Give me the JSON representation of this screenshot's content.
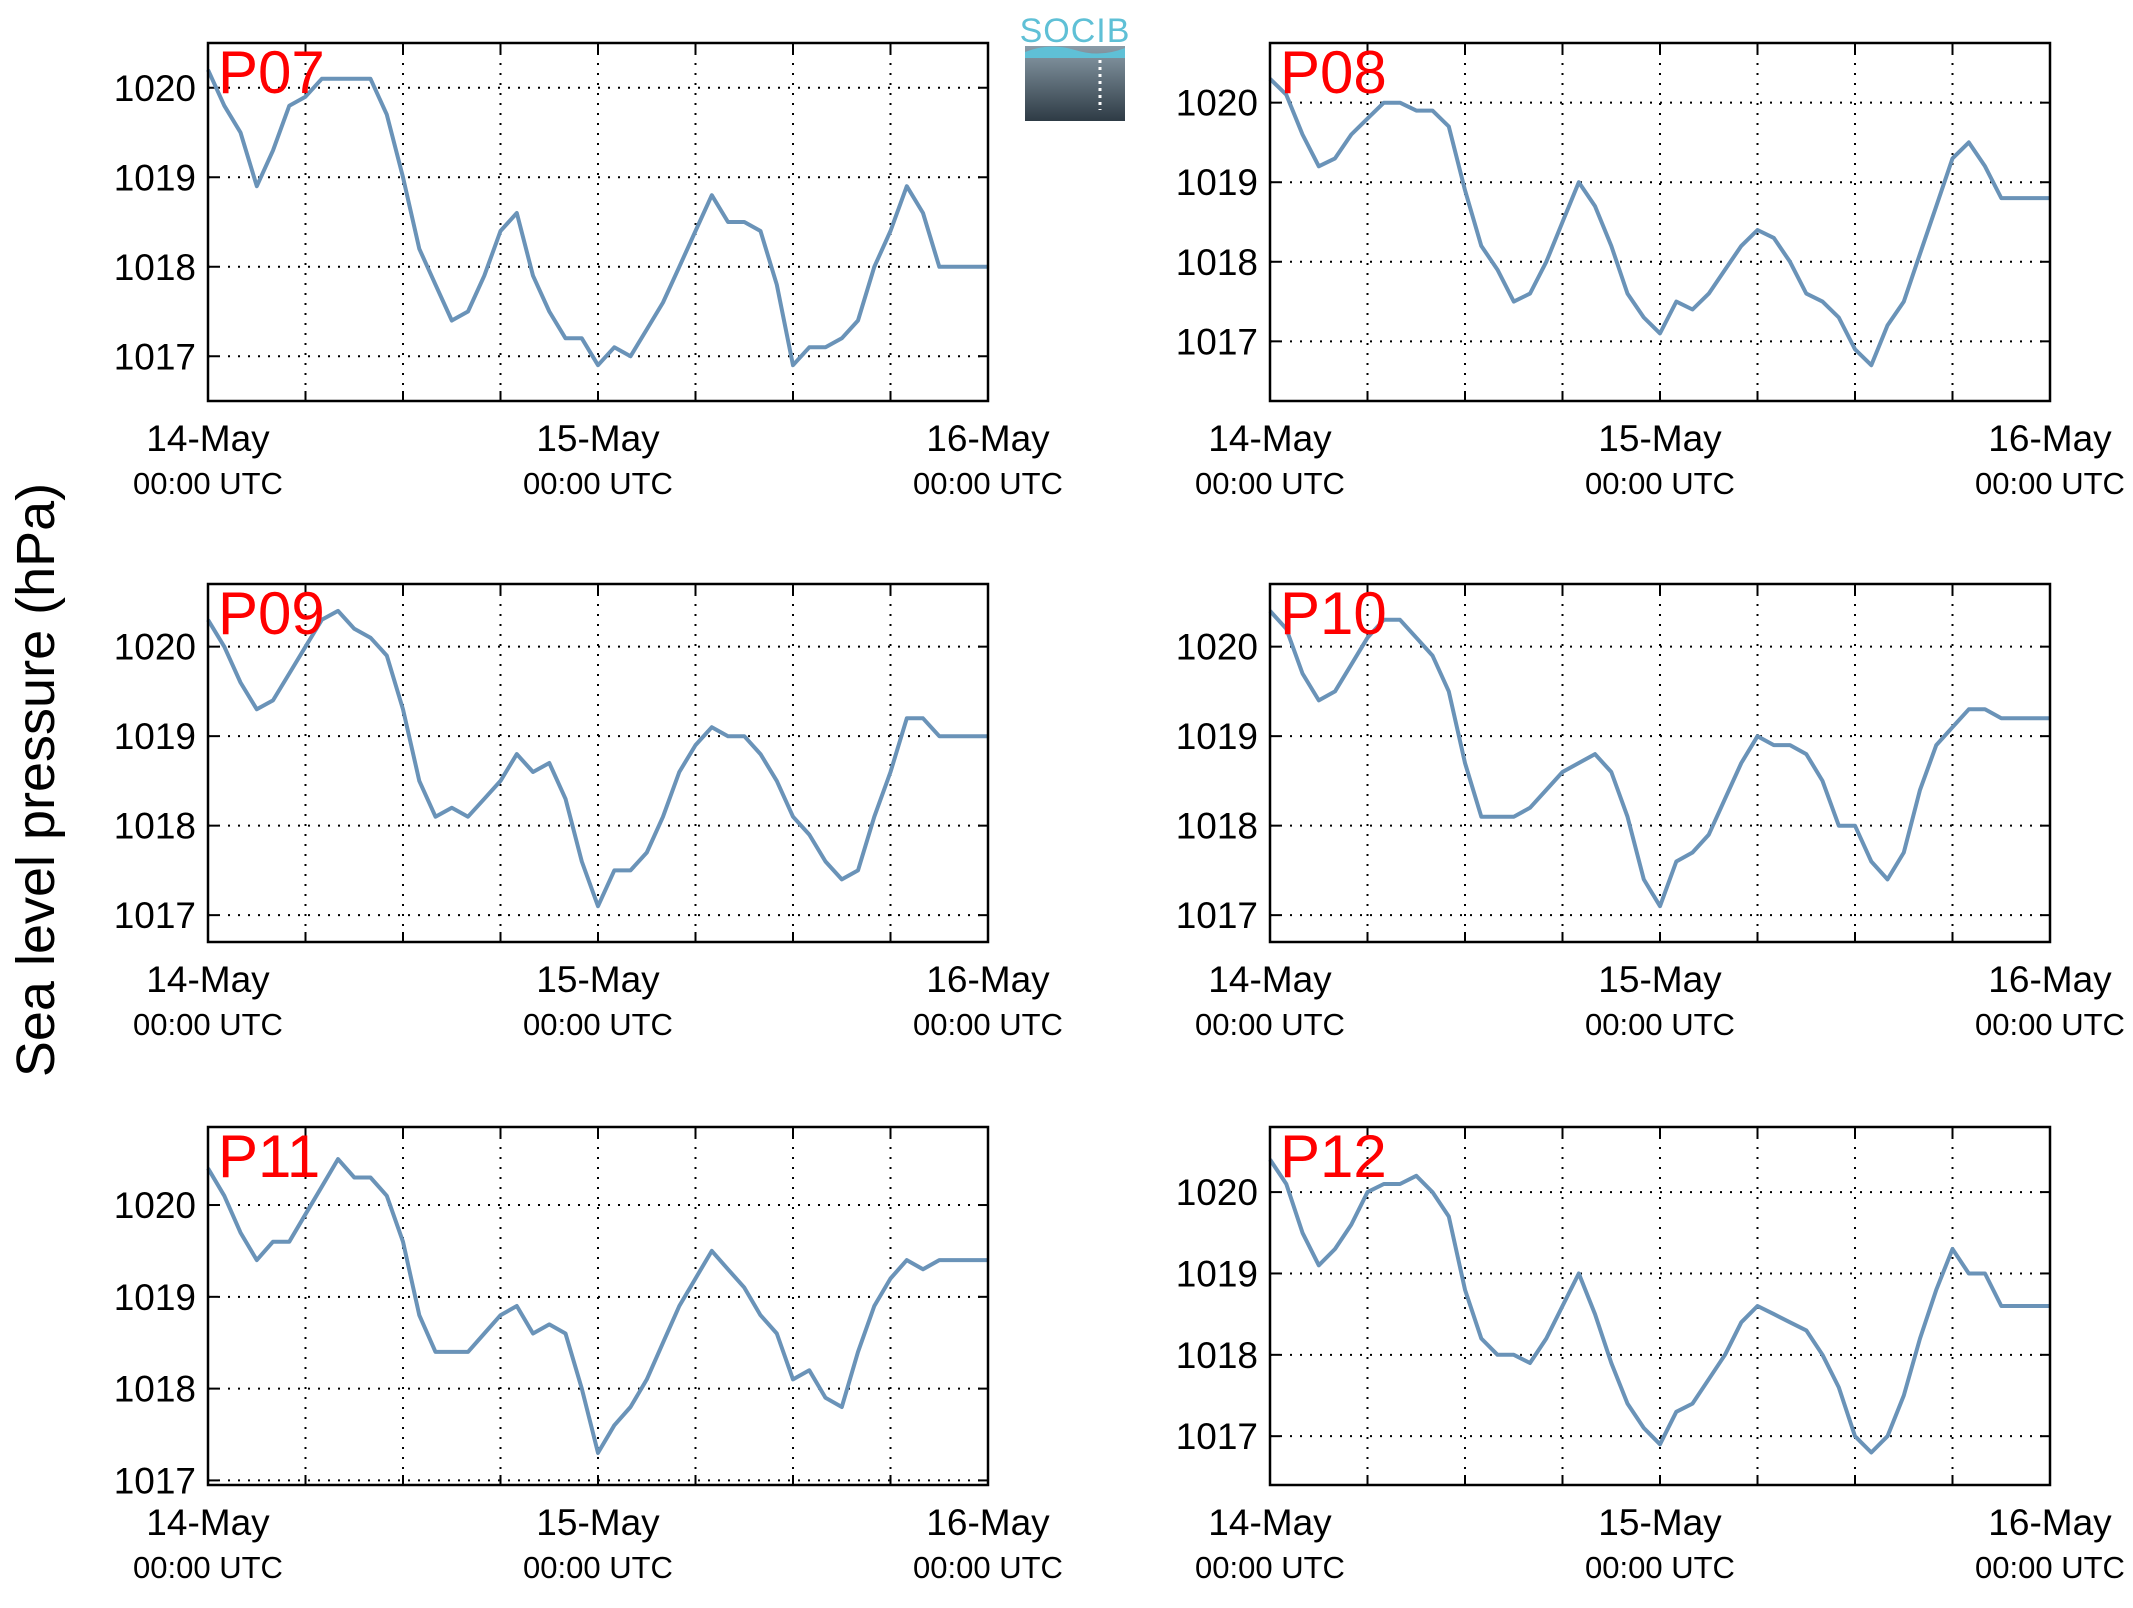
{
  "figure": {
    "ylabel": "Sea level pressure (hPa)",
    "logo_text": "SOCIB",
    "line_color": "#6a93b8",
    "label_color": "#ff0000"
  },
  "chart_data": [
    {
      "type": "line",
      "label": "P07",
      "x_ticks": [
        {
          "main": "14-May",
          "sub": "00:00 UTC"
        },
        {
          "main": "15-May",
          "sub": "00:00 UTC"
        },
        {
          "main": "16-May",
          "sub": "00:00 UTC"
        }
      ],
      "yticks": [
        1017,
        1018,
        1019,
        1020
      ],
      "ylim": [
        1016.5,
        1020.5
      ],
      "xlim": [
        0,
        48
      ],
      "grid": true,
      "x": [
        0,
        1,
        2,
        3,
        4,
        5,
        6,
        7,
        8,
        9,
        10,
        11,
        12,
        13,
        14,
        15,
        16,
        17,
        18,
        19,
        20,
        21,
        22,
        23,
        24,
        25,
        26,
        27,
        28,
        29,
        30,
        31,
        32,
        33,
        34,
        35,
        36,
        37,
        38,
        39,
        40,
        41,
        42,
        43,
        44,
        45,
        46,
        47,
        48
      ],
      "y": [
        1020.2,
        1019.8,
        1019.5,
        1018.9,
        1019.3,
        1019.8,
        1019.9,
        1020.1,
        1020.1,
        1020.1,
        1020.1,
        1019.7,
        1019.0,
        1018.2,
        1017.8,
        1017.4,
        1017.5,
        1017.9,
        1018.4,
        1018.6,
        1017.9,
        1017.5,
        1017.2,
        1017.2,
        1016.9,
        1017.1,
        1017.0,
        1017.3,
        1017.6,
        1018.0,
        1018.4,
        1018.8,
        1018.5,
        1018.5,
        1018.4,
        1017.8,
        1016.9,
        1017.1,
        1017.1,
        1017.2,
        1017.4,
        1018.0,
        1018.4,
        1018.9,
        1018.6,
        1018.0,
        1018.0,
        1018.0,
        1018.0
      ]
    },
    {
      "type": "line",
      "label": "P08",
      "x_ticks": [
        {
          "main": "14-May",
          "sub": "00:00 UTC"
        },
        {
          "main": "15-May",
          "sub": "00:00 UTC"
        },
        {
          "main": "16-May",
          "sub": "00:00 UTC"
        }
      ],
      "yticks": [
        1017,
        1018,
        1019,
        1020
      ],
      "ylim": [
        1016.25,
        1020.75
      ],
      "xlim": [
        0,
        48
      ],
      "grid": true,
      "x": [
        0,
        1,
        2,
        3,
        4,
        5,
        6,
        7,
        8,
        9,
        10,
        11,
        12,
        13,
        14,
        15,
        16,
        17,
        18,
        19,
        20,
        21,
        22,
        23,
        24,
        25,
        26,
        27,
        28,
        29,
        30,
        31,
        32,
        33,
        34,
        35,
        36,
        37,
        38,
        39,
        40,
        41,
        42,
        43,
        44,
        45,
        46,
        47,
        48
      ],
      "y": [
        1020.3,
        1020.1,
        1019.6,
        1019.2,
        1019.3,
        1019.6,
        1019.8,
        1020.0,
        1020.0,
        1019.9,
        1019.9,
        1019.7,
        1018.9,
        1018.2,
        1017.9,
        1017.5,
        1017.6,
        1018.0,
        1018.5,
        1019.0,
        1018.7,
        1018.2,
        1017.6,
        1017.3,
        1017.1,
        1017.5,
        1017.4,
        1017.6,
        1017.9,
        1018.2,
        1018.4,
        1018.3,
        1018.0,
        1017.6,
        1017.5,
        1017.3,
        1016.9,
        1016.7,
        1017.2,
        1017.5,
        1018.1,
        1018.7,
        1019.3,
        1019.5,
        1019.2,
        1018.8,
        1018.8,
        1018.8,
        1018.8
      ]
    },
    {
      "type": "line",
      "label": "P09",
      "x_ticks": [
        {
          "main": "14-May",
          "sub": "00:00 UTC"
        },
        {
          "main": "15-May",
          "sub": "00:00 UTC"
        },
        {
          "main": "16-May",
          "sub": "00:00 UTC"
        }
      ],
      "yticks": [
        1017,
        1018,
        1019,
        1020
      ],
      "ylim": [
        1016.7,
        1020.7
      ],
      "xlim": [
        0,
        48
      ],
      "grid": true,
      "x": [
        0,
        1,
        2,
        3,
        4,
        5,
        6,
        7,
        8,
        9,
        10,
        11,
        12,
        13,
        14,
        15,
        16,
        17,
        18,
        19,
        20,
        21,
        22,
        23,
        24,
        25,
        26,
        27,
        28,
        29,
        30,
        31,
        32,
        33,
        34,
        35,
        36,
        37,
        38,
        39,
        40,
        41,
        42,
        43,
        44,
        45,
        46,
        47,
        48
      ],
      "y": [
        1020.3,
        1020.0,
        1019.6,
        1019.3,
        1019.4,
        1019.7,
        1020.0,
        1020.3,
        1020.4,
        1020.2,
        1020.1,
        1019.9,
        1019.3,
        1018.5,
        1018.1,
        1018.2,
        1018.1,
        1018.3,
        1018.5,
        1018.8,
        1018.6,
        1018.7,
        1018.3,
        1017.6,
        1017.1,
        1017.5,
        1017.5,
        1017.7,
        1018.1,
        1018.6,
        1018.9,
        1019.1,
        1019.0,
        1019.0,
        1018.8,
        1018.5,
        1018.1,
        1017.9,
        1017.6,
        1017.4,
        1017.5,
        1018.1,
        1018.6,
        1019.2,
        1019.2,
        1019.0,
        1019.0,
        1019.0,
        1019.0
      ]
    },
    {
      "type": "line",
      "label": "P10",
      "x_ticks": [
        {
          "main": "14-May",
          "sub": "00:00 UTC"
        },
        {
          "main": "15-May",
          "sub": "00:00 UTC"
        },
        {
          "main": "16-May",
          "sub": "00:00 UTC"
        }
      ],
      "yticks": [
        1017,
        1018,
        1019,
        1020
      ],
      "ylim": [
        1016.7,
        1020.7
      ],
      "xlim": [
        0,
        48
      ],
      "grid": true,
      "x": [
        0,
        1,
        2,
        3,
        4,
        5,
        6,
        7,
        8,
        9,
        10,
        11,
        12,
        13,
        14,
        15,
        16,
        17,
        18,
        19,
        20,
        21,
        22,
        23,
        24,
        25,
        26,
        27,
        28,
        29,
        30,
        31,
        32,
        33,
        34,
        35,
        36,
        37,
        38,
        39,
        40,
        41,
        42,
        43,
        44,
        45,
        46,
        47,
        48
      ],
      "y": [
        1020.4,
        1020.2,
        1019.7,
        1019.4,
        1019.5,
        1019.8,
        1020.1,
        1020.3,
        1020.3,
        1020.1,
        1019.9,
        1019.5,
        1018.7,
        1018.1,
        1018.1,
        1018.1,
        1018.2,
        1018.4,
        1018.6,
        1018.7,
        1018.8,
        1018.6,
        1018.1,
        1017.4,
        1017.1,
        1017.6,
        1017.7,
        1017.9,
        1018.3,
        1018.7,
        1019.0,
        1018.9,
        1018.9,
        1018.8,
        1018.5,
        1018.0,
        1018.0,
        1017.6,
        1017.4,
        1017.7,
        1018.4,
        1018.9,
        1019.1,
        1019.3,
        1019.3,
        1019.2,
        1019.2,
        1019.2,
        1019.2
      ]
    },
    {
      "type": "line",
      "label": "P11",
      "x_ticks": [
        {
          "main": "14-May",
          "sub": "00:00 UTC"
        },
        {
          "main": "15-May",
          "sub": "00:00 UTC"
        },
        {
          "main": "16-May",
          "sub": "00:00 UTC"
        }
      ],
      "yticks": [
        1017,
        1018,
        1019,
        1020
      ],
      "ylim": [
        1016.95,
        1020.85
      ],
      "xlim": [
        0,
        48
      ],
      "grid": true,
      "x": [
        0,
        1,
        2,
        3,
        4,
        5,
        6,
        7,
        8,
        9,
        10,
        11,
        12,
        13,
        14,
        15,
        16,
        17,
        18,
        19,
        20,
        21,
        22,
        23,
        24,
        25,
        26,
        27,
        28,
        29,
        30,
        31,
        32,
        33,
        34,
        35,
        36,
        37,
        38,
        39,
        40,
        41,
        42,
        43,
        44,
        45,
        46,
        47,
        48
      ],
      "y": [
        1020.4,
        1020.1,
        1019.7,
        1019.4,
        1019.6,
        1019.6,
        1019.9,
        1020.2,
        1020.5,
        1020.3,
        1020.3,
        1020.1,
        1019.6,
        1018.8,
        1018.4,
        1018.4,
        1018.4,
        1018.6,
        1018.8,
        1018.9,
        1018.6,
        1018.7,
        1018.6,
        1018.0,
        1017.3,
        1017.6,
        1017.8,
        1018.1,
        1018.5,
        1018.9,
        1019.2,
        1019.5,
        1019.3,
        1019.1,
        1018.8,
        1018.6,
        1018.1,
        1018.2,
        1017.9,
        1017.8,
        1018.4,
        1018.9,
        1019.2,
        1019.4,
        1019.3,
        1019.4,
        1019.4,
        1019.4,
        1019.4
      ]
    },
    {
      "type": "line",
      "label": "P12",
      "x_ticks": [
        {
          "main": "14-May",
          "sub": "00:00 UTC"
        },
        {
          "main": "15-May",
          "sub": "00:00 UTC"
        },
        {
          "main": "16-May",
          "sub": "00:00 UTC"
        }
      ],
      "yticks": [
        1017,
        1018,
        1019,
        1020
      ],
      "ylim": [
        1016.4,
        1020.8
      ],
      "xlim": [
        0,
        48
      ],
      "grid": true,
      "x": [
        0,
        1,
        2,
        3,
        4,
        5,
        6,
        7,
        8,
        9,
        10,
        11,
        12,
        13,
        14,
        15,
        16,
        17,
        18,
        19,
        20,
        21,
        22,
        23,
        24,
        25,
        26,
        27,
        28,
        29,
        30,
        31,
        32,
        33,
        34,
        35,
        36,
        37,
        38,
        39,
        40,
        41,
        42,
        43,
        44,
        45,
        46,
        47,
        48
      ],
      "y": [
        1020.4,
        1020.1,
        1019.5,
        1019.1,
        1019.3,
        1019.6,
        1020.0,
        1020.1,
        1020.1,
        1020.2,
        1020.0,
        1019.7,
        1018.8,
        1018.2,
        1018.0,
        1018.0,
        1017.9,
        1018.2,
        1018.6,
        1019.0,
        1018.5,
        1017.9,
        1017.4,
        1017.1,
        1016.9,
        1017.3,
        1017.4,
        1017.7,
        1018.0,
        1018.4,
        1018.6,
        1018.5,
        1018.4,
        1018.3,
        1018.0,
        1017.6,
        1017.0,
        1016.8,
        1017.0,
        1017.5,
        1018.2,
        1018.8,
        1019.3,
        1019.0,
        1019.0,
        1018.6,
        1018.6,
        1018.6,
        1018.6
      ]
    }
  ]
}
